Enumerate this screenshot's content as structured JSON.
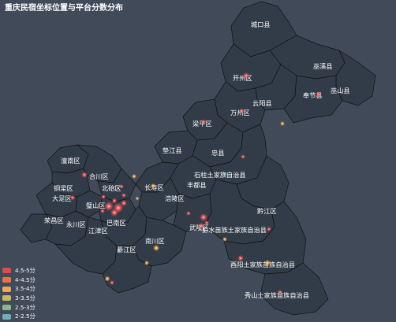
{
  "title": "重庆民宿坐标位置与平台分数分布",
  "map_labels": [
    {
      "id": "chengkou",
      "text": "城口县"
    },
    {
      "id": "wuxi",
      "text": "巫溪县"
    },
    {
      "id": "kaizhou",
      "text": "开州区"
    },
    {
      "id": "wushan",
      "text": "巫山县"
    },
    {
      "id": "fengjie",
      "text": "奉节县"
    },
    {
      "id": "yunyang",
      "text": "云阳县"
    },
    {
      "id": "wanzhou",
      "text": "万州区"
    },
    {
      "id": "liangping",
      "text": "梁平区"
    },
    {
      "id": "dianjiang",
      "text": "垫江县"
    },
    {
      "id": "zhongxian",
      "text": "忠县"
    },
    {
      "id": "tongnan",
      "text": "潼南区"
    },
    {
      "id": "hechuan",
      "text": "合川区"
    },
    {
      "id": "shizhu",
      "text": "石柱土家族自治县"
    },
    {
      "id": "tongliang",
      "text": "铜梁区"
    },
    {
      "id": "beibei",
      "text": "北碚区"
    },
    {
      "id": "changshou",
      "text": "长寿区"
    },
    {
      "id": "fengdu",
      "text": "丰都县"
    },
    {
      "id": "dazu",
      "text": "大足区"
    },
    {
      "id": "fuling",
      "text": "涪陵区"
    },
    {
      "id": "bishan",
      "text": "璧山区"
    },
    {
      "id": "rongchang",
      "text": "荣昌区"
    },
    {
      "id": "yongchuan",
      "text": "永川区"
    },
    {
      "id": "banan",
      "text": "巴南区"
    },
    {
      "id": "qianjiang",
      "text": "黔江区"
    },
    {
      "id": "jiangjin",
      "text": "江津区"
    },
    {
      "id": "wulong",
      "text": "武隆区"
    },
    {
      "id": "pengshui",
      "text": "彭水苗族土家族自治县"
    },
    {
      "id": "nanchuan",
      "text": "南川区"
    },
    {
      "id": "qijiang",
      "text": "綦江区"
    },
    {
      "id": "youyang",
      "text": "酉阳土家族苗族自治县"
    },
    {
      "id": "xiushan",
      "text": "秀山土家族苗族自治县"
    }
  ],
  "legend": [
    {
      "label": "4.5-5分",
      "color": "#dd4b4e"
    },
    {
      "label": "4-4.5分",
      "color": "#e8734b"
    },
    {
      "label": "3.5-4分",
      "color": "#f4a745"
    },
    {
      "label": "3-3.5分",
      "color": "#c9b660"
    },
    {
      "label": "2.5-3分",
      "color": "#8fb38c"
    },
    {
      "label": "2-2.5分",
      "color": "#6fb0b8"
    }
  ]
}
